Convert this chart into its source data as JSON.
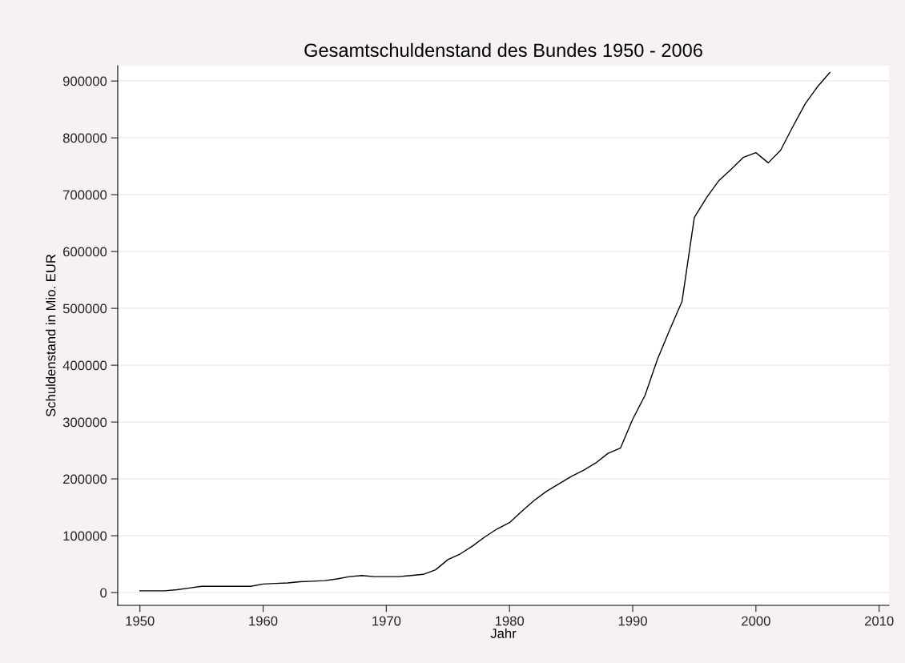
{
  "chart_data": {
    "type": "line",
    "title": "Gesamtschuldenstand des Bundes 1950 - 2006",
    "xlabel": "Jahr",
    "ylabel": "Schuldenstand in Mio. EUR",
    "x": [
      1950,
      1951,
      1952,
      1953,
      1954,
      1955,
      1956,
      1957,
      1958,
      1959,
      1960,
      1961,
      1962,
      1963,
      1964,
      1965,
      1966,
      1967,
      1968,
      1969,
      1970,
      1971,
      1972,
      1973,
      1974,
      1975,
      1976,
      1977,
      1978,
      1979,
      1980,
      1981,
      1982,
      1983,
      1984,
      1985,
      1986,
      1987,
      1988,
      1989,
      1990,
      1991,
      1992,
      1993,
      1994,
      1995,
      1996,
      1997,
      1998,
      1999,
      2000,
      2001,
      2002,
      2003,
      2004,
      2005,
      2006
    ],
    "series": [
      {
        "color": "#000000",
        "values": [
          3000,
          3000,
          3000,
          5000,
          8000,
          11000,
          11000,
          11000,
          11000,
          11000,
          15000,
          16000,
          17000,
          19000,
          20000,
          21000,
          24000,
          28000,
          30000,
          28000,
          28000,
          28000,
          30000,
          32000,
          40000,
          58000,
          68000,
          82000,
          98000,
          112000,
          123000,
          143000,
          162000,
          178000,
          191000,
          204000,
          215000,
          228000,
          245000,
          254000,
          305000,
          347000,
          410000,
          462000,
          512000,
          660000,
          695000,
          725000,
          745000,
          766000,
          774000,
          756000,
          778000,
          820000,
          860000,
          890000,
          915000
        ]
      }
    ],
    "xlim": [
      1948.2,
      2010.8
    ],
    "ylim": [
      -22500,
      927000
    ],
    "xticks": [
      1950,
      1960,
      1970,
      1980,
      1990,
      2000,
      2010
    ],
    "yticks": [
      0,
      100000,
      200000,
      300000,
      400000,
      500000,
      600000,
      700000,
      800000,
      900000
    ],
    "grid": "y",
    "line_style": "solid",
    "marker": "none"
  }
}
